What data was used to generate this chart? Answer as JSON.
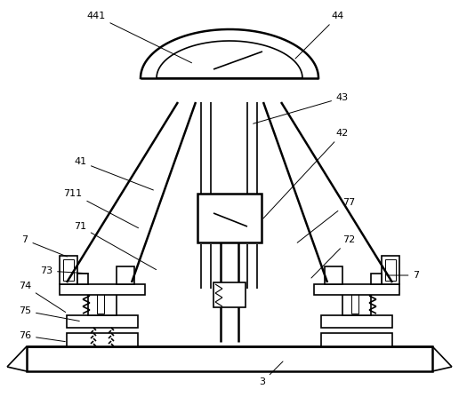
{
  "bg_color": "#ffffff",
  "line_color": "#000000",
  "lw": 1.2,
  "lw2": 1.8,
  "fig_width": 5.16,
  "fig_height": 4.47,
  "dpi": 100
}
